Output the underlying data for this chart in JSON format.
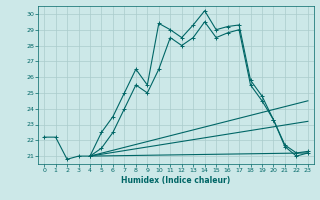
{
  "xlabel": "Humidex (Indice chaleur)",
  "bg_color": "#cce8e8",
  "grid_color": "#aacccc",
  "line_color": "#006666",
  "ylim": [
    20.5,
    30.5
  ],
  "xlim": [
    -0.5,
    23.5
  ],
  "yticks": [
    21,
    22,
    23,
    24,
    25,
    26,
    27,
    28,
    29,
    30
  ],
  "xticks": [
    0,
    1,
    2,
    3,
    4,
    5,
    6,
    7,
    8,
    9,
    10,
    11,
    12,
    13,
    14,
    15,
    16,
    17,
    18,
    19,
    20,
    21,
    22,
    23
  ],
  "lines": [
    {
      "x": [
        0,
        1,
        2,
        3,
        4,
        5,
        6,
        7,
        8,
        9,
        10,
        11,
        12,
        13,
        14,
        15,
        16,
        17,
        18,
        19,
        20,
        21,
        22,
        23
      ],
      "y": [
        22.2,
        22.2,
        20.8,
        21.0,
        21.0,
        22.5,
        23.5,
        25.0,
        26.5,
        25.5,
        29.4,
        29.0,
        28.5,
        29.3,
        30.2,
        29.0,
        29.2,
        29.3,
        25.8,
        24.8,
        23.3,
        21.7,
        21.2,
        21.3
      ],
      "marker": "+",
      "markersize": 3.5,
      "linewidth": 0.8
    },
    {
      "x": [
        4,
        5,
        6,
        7,
        8,
        9,
        10,
        11,
        12,
        13,
        14,
        15,
        16,
        17,
        18,
        19,
        20,
        21,
        22,
        23
      ],
      "y": [
        21.0,
        21.5,
        22.5,
        24.0,
        25.5,
        25.0,
        26.5,
        28.5,
        28.0,
        28.5,
        29.5,
        28.5,
        28.8,
        29.0,
        25.5,
        24.5,
        23.3,
        21.6,
        21.0,
        21.2
      ],
      "marker": "+",
      "markersize": 3.5,
      "linewidth": 0.8
    },
    {
      "x": [
        4,
        23
      ],
      "y": [
        21.0,
        24.5
      ],
      "marker": null,
      "markersize": 0,
      "linewidth": 0.8
    },
    {
      "x": [
        4,
        23
      ],
      "y": [
        21.0,
        21.2
      ],
      "marker": null,
      "markersize": 0,
      "linewidth": 0.8
    },
    {
      "x": [
        4,
        23
      ],
      "y": [
        21.0,
        23.2
      ],
      "marker": null,
      "markersize": 0,
      "linewidth": 0.8
    }
  ]
}
